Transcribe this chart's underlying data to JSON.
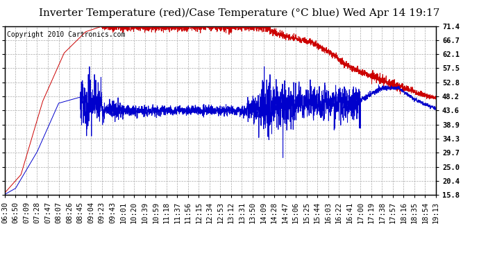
{
  "title": "Inverter Temperature (red)/Case Temperature (°C blue) Wed Apr 14 19:17",
  "copyright": "Copyright 2010 Cartronics.com",
  "yticks": [
    15.8,
    20.4,
    25.0,
    29.7,
    34.3,
    38.9,
    43.6,
    48.2,
    52.8,
    57.5,
    62.1,
    66.7,
    71.4
  ],
  "ylim": [
    15.8,
    71.4
  ],
  "xtick_labels": [
    "06:30",
    "06:50",
    "07:09",
    "07:28",
    "07:47",
    "08:07",
    "08:26",
    "08:45",
    "09:04",
    "09:23",
    "09:43",
    "10:01",
    "10:20",
    "10:39",
    "10:59",
    "11:18",
    "11:37",
    "11:56",
    "12:15",
    "12:34",
    "12:53",
    "13:12",
    "13:31",
    "13:50",
    "14:09",
    "14:28",
    "14:47",
    "15:06",
    "15:25",
    "15:44",
    "16:03",
    "16:22",
    "16:41",
    "17:00",
    "17:19",
    "17:38",
    "17:57",
    "18:16",
    "18:35",
    "18:54",
    "19:13"
  ],
  "red_color": "#cc0000",
  "blue_color": "#0000cc",
  "background_color": "#ffffff",
  "grid_color": "#aaaaaa",
  "title_fontsize": 11,
  "copyright_fontsize": 7,
  "tick_fontsize": 7.5
}
